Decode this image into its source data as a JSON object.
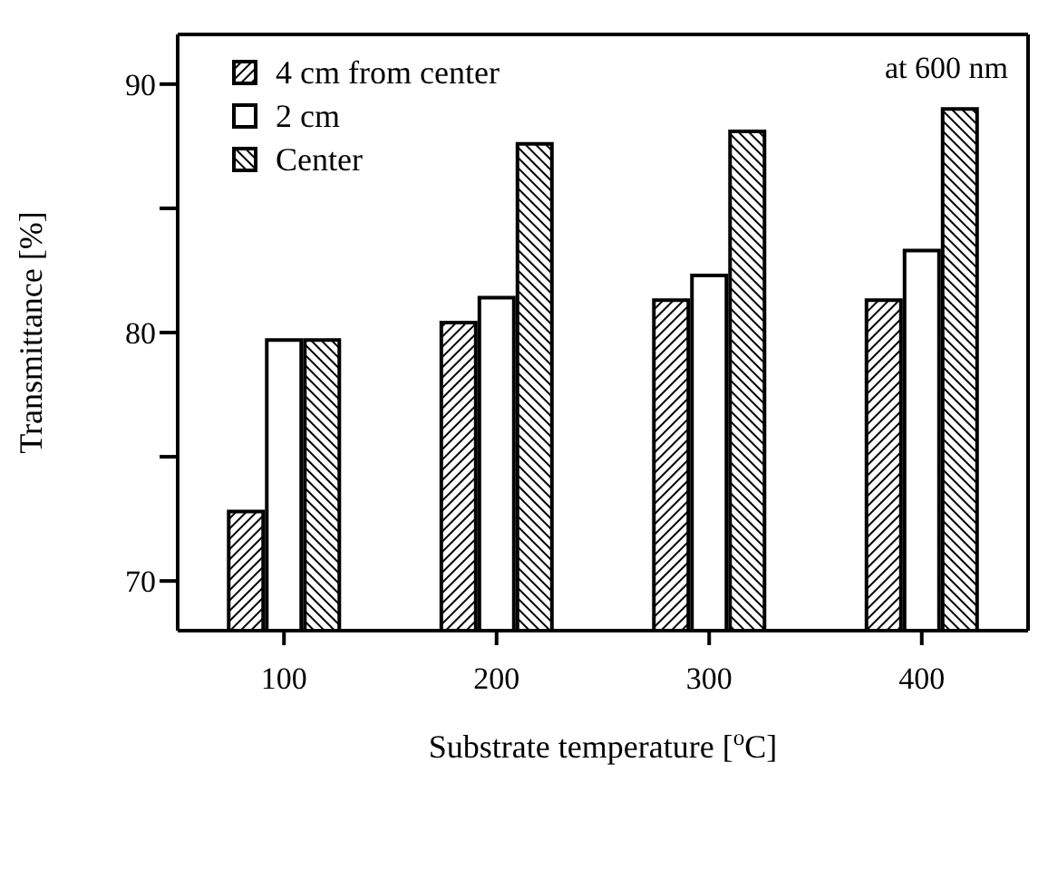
{
  "chart_data": {
    "type": "bar",
    "xlabel": "Substrate temperature [$^{o}$C]",
    "ylabel": "Transmittance  [%]",
    "categories": [
      "100",
      "200",
      "300",
      "400"
    ],
    "series": [
      {
        "name": "4 cm from center",
        "color": "#000000",
        "values": [
          72.8,
          80.4,
          81.3,
          81.3
        ]
      },
      {
        "name": "2 cm",
        "color": "#ffffff",
        "values": [
          79.7,
          81.4,
          82.3,
          83.3
        ]
      },
      {
        "name": "Center",
        "color": "#000000",
        "values": [
          79.7,
          87.6,
          88.1,
          89.0
        ]
      }
    ],
    "ylim": [
      68,
      92
    ],
    "yticks": [
      {
        "value": 70,
        "label": "70"
      },
      {
        "value": 75,
        "label": null
      },
      {
        "value": 80,
        "label": "80"
      },
      {
        "value": 85,
        "label": null
      },
      {
        "value": 90,
        "label": "90"
      }
    ],
    "annotations": [
      "at 600 nm"
    ],
    "legend": "top left",
    "grid": false
  }
}
